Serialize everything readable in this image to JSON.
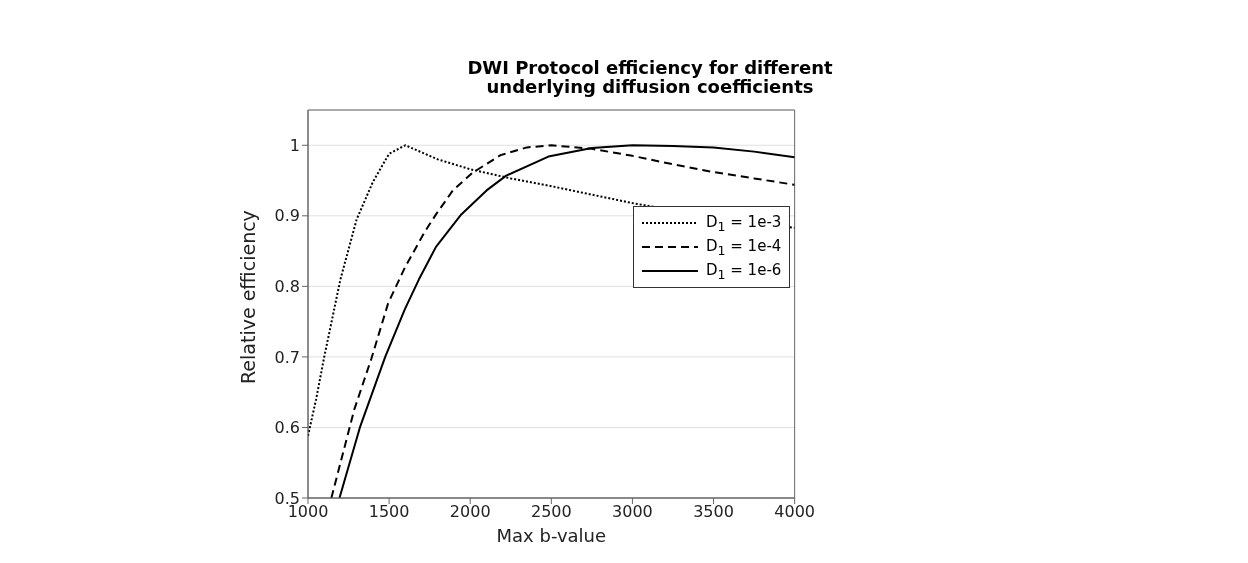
{
  "chart_data": {
    "type": "line",
    "title": "DWI Protocol efficiency for different underlying diffusion coefficients",
    "xlabel": "Max b-value",
    "ylabel": "Relative efficiency",
    "xlim": [
      1000,
      4000
    ],
    "xticks": [
      1000,
      1500,
      2000,
      2500,
      3000,
      3500,
      4000
    ],
    "ylim": [
      0.5,
      1.05
    ],
    "yticks": [
      0.5,
      0.6,
      0.7,
      0.8,
      0.9,
      1
    ],
    "grid": "y",
    "legend": "right",
    "marker": "none",
    "series": [
      {
        "name": "D$_{1}$ = 1e-3",
        "color": "#000000",
        "line_style": "dotted",
        "x": [
          1000,
          1050,
          1100,
          1200,
          1300,
          1400,
          1500,
          1600,
          1700,
          1800,
          2000,
          2250,
          2500,
          2750,
          3000,
          3250,
          3500,
          3750,
          4000
        ],
        "values": [
          0.588,
          0.64,
          0.7,
          0.81,
          0.895,
          0.948,
          0.988,
          1.0,
          0.99,
          0.98,
          0.966,
          0.953,
          0.942,
          0.93,
          0.918,
          0.908,
          0.898,
          0.89,
          0.883
        ]
      },
      {
        "name": "D$_{1}$ = 1e-4",
        "color": "#000000",
        "line_style": "dashed",
        "x": [
          1144,
          1286,
          1390,
          1494,
          1598,
          1719,
          1789,
          1893,
          2014,
          2187,
          2350,
          2500,
          2750,
          3000,
          3250,
          3500,
          3750,
          4000
        ],
        "values": [
          0.5,
          0.626,
          0.697,
          0.776,
          0.827,
          0.877,
          0.902,
          0.936,
          0.961,
          0.986,
          0.997,
          1.0,
          0.995,
          0.985,
          0.973,
          0.962,
          0.953,
          0.944
        ]
      },
      {
        "name": "D$_{1}$ = 1e-6",
        "color": "#000000",
        "line_style": "solid",
        "x": [
          1194,
          1320,
          1476,
          1598,
          1684,
          1789,
          1945,
          2101,
          2222,
          2482,
          2750,
          3000,
          3250,
          3500,
          3750,
          4000
        ],
        "values": [
          0.5,
          0.6,
          0.7,
          0.768,
          0.81,
          0.856,
          0.902,
          0.936,
          0.957,
          0.984,
          0.996,
          1.0,
          0.999,
          0.997,
          0.991,
          0.983
        ]
      }
    ]
  }
}
